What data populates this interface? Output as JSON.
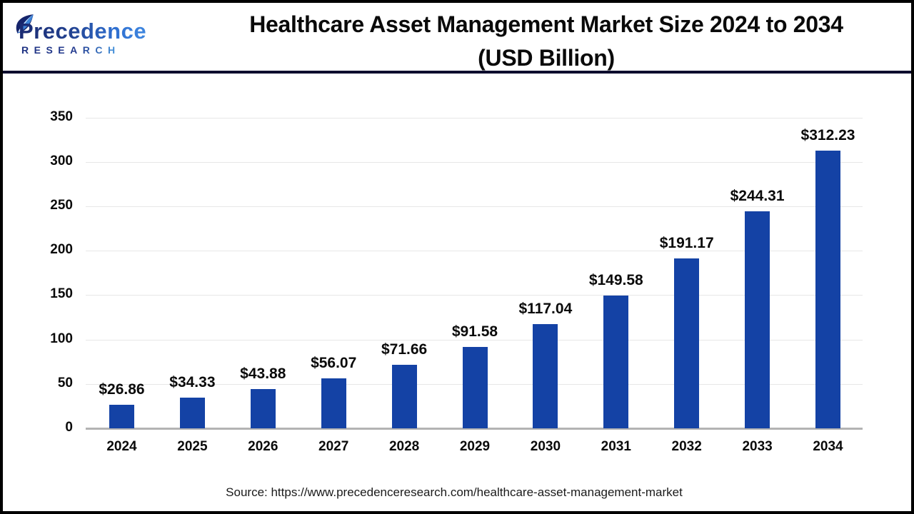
{
  "header": {
    "logo": {
      "brand": "Precedence",
      "sub": "RESEARCH"
    },
    "title_line1": "Healthcare Asset Management Market Size 2024 to 2034",
    "title_line2": "(USD Billion)"
  },
  "chart_data": {
    "type": "bar",
    "title": "Healthcare Asset Management Market Size 2024 to 2034 (USD Billion)",
    "unit": "USD Billion",
    "categories": [
      "2024",
      "2025",
      "2026",
      "2027",
      "2028",
      "2029",
      "2030",
      "2031",
      "2032",
      "2033",
      "2034"
    ],
    "values": [
      26.86,
      34.33,
      43.88,
      56.07,
      71.66,
      91.58,
      117.04,
      149.58,
      191.17,
      244.31,
      312.23
    ],
    "value_labels": [
      "$26.86",
      "$34.33",
      "$43.88",
      "$56.07",
      "$71.66",
      "$91.58",
      "$117.04",
      "$149.58",
      "$191.17",
      "$244.31",
      "$312.23"
    ],
    "xlabel": "",
    "ylabel": "",
    "ylim": [
      0,
      350
    ],
    "yticks": [
      0,
      50,
      100,
      150,
      200,
      250,
      300,
      350
    ],
    "grid": true,
    "legend": "none",
    "bar_color": "#1442a5"
  },
  "footer": {
    "source": "Source: https://www.precedenceresearch.com/healthcare-asset-management-market"
  }
}
